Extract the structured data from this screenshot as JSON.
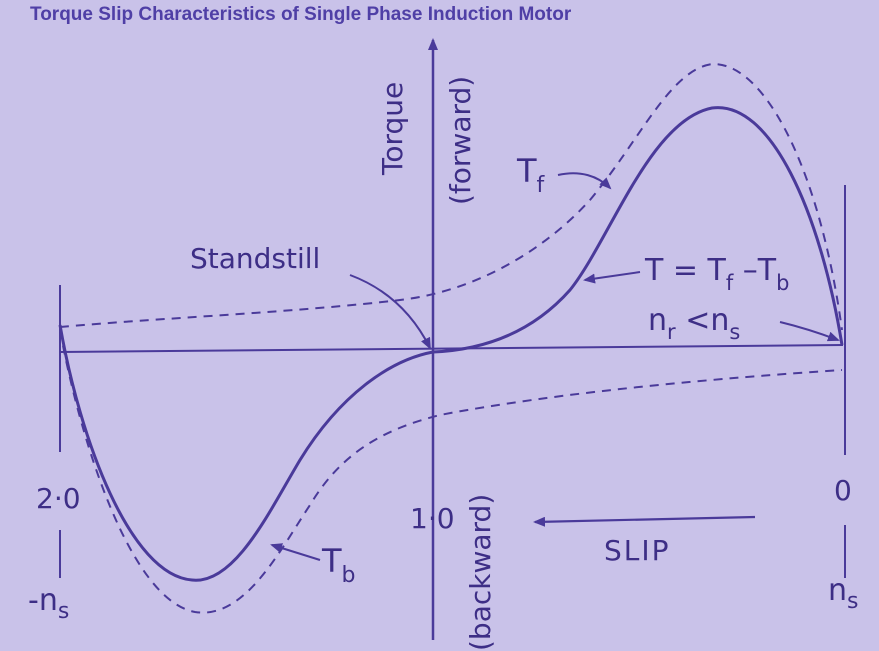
{
  "title": "Torque Slip Characteristics of Single Phase Induction Motor",
  "axes": {
    "y_top_label_1": "Torque",
    "y_top_label_2": "(forward)",
    "y_bottom_label": "(backward)",
    "x_arrow_label": "SLIP"
  },
  "ticks": {
    "left_value": "2·0",
    "left_speed": "-n",
    "left_speed_sub": "s",
    "center_value": "1·0",
    "right_value": "0",
    "right_speed": "n",
    "right_speed_sub": "s"
  },
  "labels": {
    "standstill": "Standstill",
    "tf_main": "T",
    "tf_sub": "f",
    "tb_main": "T",
    "tb_sub": "b",
    "resultant": "T = T",
    "resultant_sub1": "f",
    "resultant_mid": " –T",
    "resultant_sub2": "b",
    "nr_main": "n",
    "nr_sub": "r",
    "nr_mid": " <n",
    "nr_sub2": "s"
  },
  "colors": {
    "ink": "#4a3a9a",
    "background": "#c9c2e9",
    "title": "#4f3fa6"
  }
}
